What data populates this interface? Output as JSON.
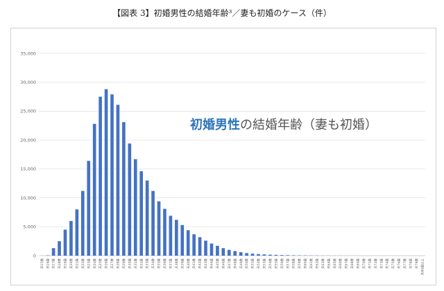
{
  "header": {
    "title": "【図表 3】初婚男性の結婚年齢³／妻も初婚のケース（件）"
  },
  "chart_data": {
    "type": "bar",
    "title_parts": {
      "emphasis": "初婚男性",
      "rest": "の結婚年齢（妻も初婚）"
    },
    "color": "#4472c4",
    "ylim": [
      0,
      35000
    ],
    "yticks": [
      0,
      5000,
      10000,
      15000,
      20000,
      25000,
      30000,
      35000
    ],
    "ytick_labels": [
      "0",
      "5,000",
      "10,000",
      "15,000",
      "20,000",
      "25,000",
      "30,000",
      "35,000"
    ],
    "grid": true,
    "categories": [
      "夫15歳",
      "夫16歳",
      "夫17歳",
      "夫18歳",
      "夫19歳",
      "夫20歳",
      "夫21歳",
      "夫22歳",
      "夫23歳",
      "夫24歳",
      "夫25歳",
      "夫26歳",
      "夫27歳",
      "夫28歳",
      "夫29歳",
      "夫30歳",
      "夫31歳",
      "夫32歳",
      "夫33歳",
      "夫34歳",
      "夫35歳",
      "夫36歳",
      "夫37歳",
      "夫38歳",
      "夫39歳",
      "夫40歳",
      "夫41歳",
      "夫42歳",
      "夫43歳",
      "夫44歳",
      "夫45歳",
      "夫46歳",
      "夫47歳",
      "夫48歳",
      "夫49歳",
      "夫50歳",
      "夫51歳",
      "夫52歳",
      "夫53歳",
      "夫54歳",
      "夫55歳",
      "夫56歳",
      "夫57歳",
      "夫58歳",
      "夫59歳",
      "夫60歳",
      "夫61歳",
      "夫62歳",
      "夫63歳",
      "夫64歳",
      "夫65歳",
      "夫66歳",
      "夫67歳",
      "夫68歳",
      "夫69歳",
      "夫70歳",
      "夫71歳",
      "夫72歳",
      "夫73歳",
      "夫74歳",
      "夫75歳",
      "夫76歳",
      "夫77歳",
      "夫78歳",
      "夫79歳",
      "夫80歳以上"
    ],
    "values": [
      10,
      60,
      1300,
      2500,
      4500,
      6000,
      8000,
      11200,
      16400,
      22800,
      27500,
      28800,
      27900,
      26100,
      23100,
      19400,
      16700,
      14600,
      13000,
      11200,
      9400,
      8100,
      6900,
      6200,
      5300,
      4400,
      3700,
      3200,
      2600,
      2100,
      1700,
      1300,
      1000,
      800,
      600,
      450,
      350,
      280,
      220,
      170,
      140,
      110,
      90,
      70,
      55,
      45,
      35,
      28,
      22,
      18,
      14,
      11,
      9,
      7,
      6,
      5,
      4,
      3,
      3,
      2,
      2,
      1,
      1,
      1,
      1,
      2
    ]
  }
}
